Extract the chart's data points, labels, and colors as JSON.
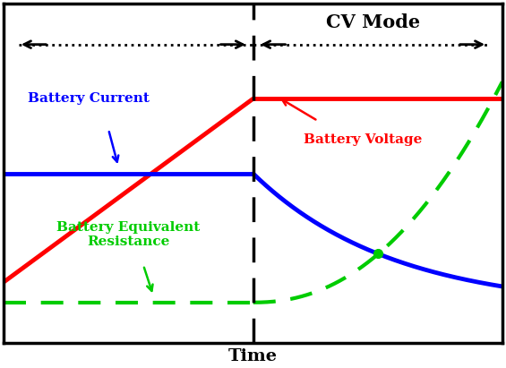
{
  "title": "CV Mode",
  "xlabel": "Time",
  "background_color": "#ffffff",
  "border_color": "#000000",
  "split": 0.5,
  "colors": {
    "red": "#ff0000",
    "blue": "#0000ff",
    "green": "#00cc00"
  },
  "labels": {
    "battery_current": "Battery Current",
    "battery_voltage": "Battery Voltage",
    "battery_resistance": "Battery Equivalent\nResistance",
    "cv_mode": "CV Mode"
  }
}
